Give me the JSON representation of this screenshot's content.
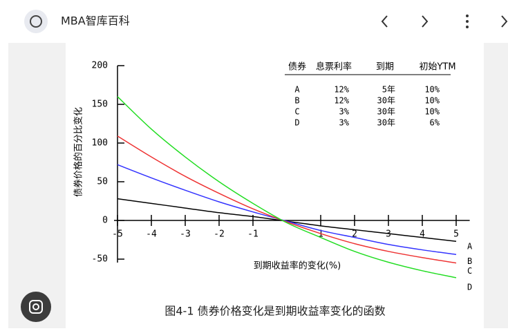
{
  "header": {
    "title": "MBA智库百科"
  },
  "caption": "图4-1 债券价格变化是到期收益率变化的函数",
  "chart_data": {
    "type": "line",
    "y_label": "债券价格的百分比变化",
    "x_label": "到期收益率的变化(%)",
    "x": [
      -5,
      -4,
      -3,
      -2,
      -1,
      0,
      1,
      2,
      3,
      4,
      5
    ],
    "xlim": [
      -5,
      5.4
    ],
    "ylim": [
      -50,
      200
    ],
    "xticks": [
      -5,
      -4,
      -3,
      -2,
      -1,
      1,
      2,
      3,
      4,
      5
    ],
    "yticks": [
      -50,
      0,
      50,
      100,
      150,
      200
    ],
    "series": [
      {
        "name": "A",
        "color": "#000000",
        "values": [
          28,
          22,
          16,
          10,
          5,
          -1,
          -7,
          -12,
          -17,
          -22,
          -27
        ]
      },
      {
        "name": "B",
        "color": "#3333ff",
        "values": [
          72,
          55,
          39,
          24,
          11,
          -1,
          -13,
          -22,
          -31,
          -38,
          -44
        ]
      },
      {
        "name": "C",
        "color": "#ee3333",
        "values": [
          109,
          82,
          57,
          35,
          15,
          -2,
          -17,
          -30,
          -40,
          -48,
          -55
        ]
      },
      {
        "name": "D",
        "color": "#22dd22",
        "values": [
          160,
          118,
          82,
          50,
          22,
          -3,
          -22,
          -40,
          -54,
          -65,
          -74
        ]
      }
    ],
    "table": {
      "columns": [
        "债券",
        "息票利率",
        "到期",
        "初始YTM"
      ],
      "rows": [
        [
          "A",
          "12%",
          "5年",
          "10%"
        ],
        [
          "B",
          "12%",
          "30年",
          "10%"
        ],
        [
          "C",
          "3%",
          "30年",
          "10%"
        ],
        [
          "D",
          "3%",
          "30年",
          "6%"
        ]
      ]
    }
  }
}
